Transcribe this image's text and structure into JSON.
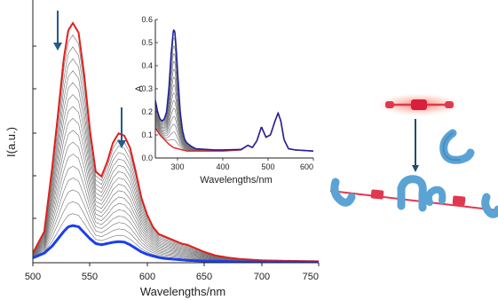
{
  "colors": {
    "initial": "#e0201e",
    "final": "#1a3ff0",
    "intermediate": "#6e6e6e",
    "arrow": "#235b8a",
    "inset_final": "#22229a",
    "tube": "#5aa3d4",
    "bead": "#e0384e",
    "glow": "#ff9a8a"
  },
  "chart_data": [
    {
      "type": "line",
      "id": "main-emission",
      "xlabel": "Wavelengths/nm",
      "ylabel": "I(a.u.)",
      "xlim": [
        500,
        750
      ],
      "ylim": [
        0,
        1.0
      ],
      "x_ticks": [
        "500",
        "550",
        "600",
        "650",
        "700",
        "750"
      ],
      "y_ticks_labeled": false,
      "arrows": [
        {
          "x": 522,
          "direction": "down"
        },
        {
          "x": 580,
          "direction": "down"
        }
      ],
      "series": [
        {
          "role": "initial",
          "color": "#e0201e",
          "points": [
            [
              500,
              0.04
            ],
            [
              510,
              0.13
            ],
            [
              517,
              0.4
            ],
            [
              522,
              0.62
            ],
            [
              527,
              0.85
            ],
            [
              531,
              0.97
            ],
            [
              535,
              1.0
            ],
            [
              540,
              0.96
            ],
            [
              545,
              0.78
            ],
            [
              550,
              0.55
            ],
            [
              555,
              0.38
            ],
            [
              560,
              0.36
            ],
            [
              565,
              0.42
            ],
            [
              570,
              0.5
            ],
            [
              575,
              0.54
            ],
            [
              580,
              0.53
            ],
            [
              585,
              0.48
            ],
            [
              590,
              0.38
            ],
            [
              595,
              0.27
            ],
            [
              600,
              0.2
            ],
            [
              605,
              0.15
            ],
            [
              610,
              0.12
            ],
            [
              615,
              0.11
            ],
            [
              620,
              0.1
            ],
            [
              625,
              0.09
            ],
            [
              630,
              0.08
            ],
            [
              635,
              0.075
            ],
            [
              640,
              0.065
            ],
            [
              650,
              0.045
            ],
            [
              660,
              0.03
            ],
            [
              670,
              0.022
            ],
            [
              680,
              0.016
            ],
            [
              700,
              0.01
            ],
            [
              720,
              0.008
            ],
            [
              750,
              0.006
            ]
          ]
        },
        {
          "role": "final",
          "color": "#1a3ff0",
          "points": [
            [
              500,
              0.02
            ],
            [
              510,
              0.04
            ],
            [
              517,
              0.07
            ],
            [
              522,
              0.1
            ],
            [
              527,
              0.13
            ],
            [
              531,
              0.15
            ],
            [
              535,
              0.155
            ],
            [
              540,
              0.15
            ],
            [
              545,
              0.125
            ],
            [
              550,
              0.1
            ],
            [
              555,
              0.08
            ],
            [
              560,
              0.075
            ],
            [
              565,
              0.08
            ],
            [
              570,
              0.085
            ],
            [
              575,
              0.088
            ],
            [
              580,
              0.086
            ],
            [
              585,
              0.075
            ],
            [
              590,
              0.06
            ],
            [
              595,
              0.045
            ],
            [
              600,
              0.035
            ],
            [
              605,
              0.028
            ],
            [
              610,
              0.022
            ],
            [
              615,
              0.018
            ],
            [
              620,
              0.016
            ],
            [
              625,
              0.014
            ],
            [
              630,
              0.012
            ],
            [
              635,
              0.01
            ],
            [
              640,
              0.009
            ],
            [
              650,
              0.007
            ],
            [
              660,
              0.006
            ],
            [
              670,
              0.005
            ],
            [
              680,
              0.004
            ],
            [
              700,
              0.003
            ],
            [
              720,
              0.003
            ],
            [
              750,
              0.002
            ]
          ]
        }
      ],
      "intermediate_count": 16
    },
    {
      "type": "line",
      "id": "inset-absorption",
      "xlabel": "Wavelengths/nm",
      "ylabel": "A",
      "xlim": [
        250,
        600
      ],
      "ylim": [
        0,
        0.6
      ],
      "x_ticks": [
        "300",
        "400",
        "500",
        "600"
      ],
      "y_ticks": [
        "0.0",
        "0.1",
        "0.2",
        "0.3",
        "0.4",
        "0.5",
        "0.6"
      ],
      "series": [
        {
          "role": "initial",
          "color": "#e0201e",
          "points": [
            [
              250,
              0.13
            ],
            [
              260,
              0.1
            ],
            [
              270,
              0.08
            ],
            [
              280,
              0.06
            ],
            [
              290,
              0.045
            ],
            [
              300,
              0.04
            ],
            [
              310,
              0.035
            ],
            [
              320,
              0.03
            ],
            [
              340,
              0.03
            ],
            [
              380,
              0.03
            ],
            [
              400,
              0.03
            ],
            [
              440,
              0.035
            ],
            [
              455,
              0.055
            ],
            [
              465,
              0.045
            ],
            [
              475,
              0.075
            ],
            [
              485,
              0.135
            ],
            [
              495,
              0.09
            ],
            [
              505,
              0.1
            ],
            [
              515,
              0.16
            ],
            [
              522,
              0.195
            ],
            [
              528,
              0.16
            ],
            [
              535,
              0.08
            ],
            [
              545,
              0.04
            ],
            [
              560,
              0.035
            ],
            [
              600,
              0.03
            ]
          ]
        },
        {
          "role": "final",
          "color": "#22229a",
          "points": [
            [
              250,
              0.25
            ],
            [
              255,
              0.2
            ],
            [
              260,
              0.17
            ],
            [
              265,
              0.16
            ],
            [
              270,
              0.17
            ],
            [
              275,
              0.2
            ],
            [
              280,
              0.3
            ],
            [
              285,
              0.45
            ],
            [
              290,
              0.555
            ],
            [
              293,
              0.55
            ],
            [
              296,
              0.48
            ],
            [
              300,
              0.35
            ],
            [
              305,
              0.2
            ],
            [
              310,
              0.12
            ],
            [
              315,
              0.08
            ],
            [
              320,
              0.065
            ],
            [
              330,
              0.05
            ],
            [
              340,
              0.04
            ],
            [
              380,
              0.035
            ],
            [
              400,
              0.035
            ],
            [
              440,
              0.037
            ],
            [
              455,
              0.055
            ],
            [
              465,
              0.045
            ],
            [
              475,
              0.075
            ],
            [
              485,
              0.135
            ],
            [
              495,
              0.09
            ],
            [
              505,
              0.1
            ],
            [
              515,
              0.16
            ],
            [
              522,
              0.195
            ],
            [
              528,
              0.16
            ],
            [
              535,
              0.08
            ],
            [
              545,
              0.04
            ],
            [
              560,
              0.035
            ],
            [
              600,
              0.03
            ]
          ]
        }
      ],
      "intermediate_count": 14
    }
  ]
}
